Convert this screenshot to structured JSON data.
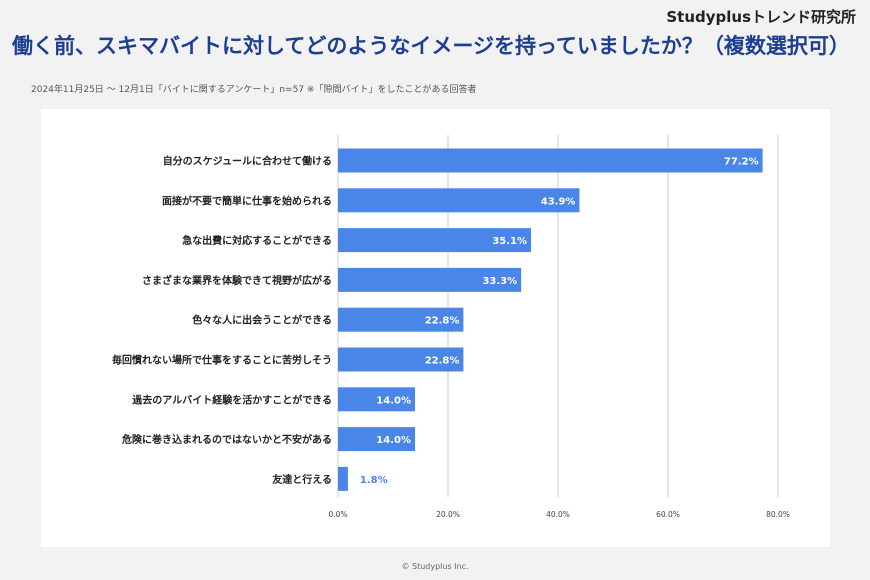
{
  "header": {
    "brand": "Studyplusトレンド研究所",
    "title": "働く前、スキマバイトに対してどのようなイメージを持っていましたか？（複数選択可）",
    "subtitle": "2024年11月25日 ～ 12月1日「バイトに関するアンケート」n=57 ※「隙間バイト」をしたことがある回答者"
  },
  "footer": {
    "copyright": "© Studyplus Inc."
  },
  "colors": {
    "bar": "#4a86e8",
    "title": "#1c3f91",
    "grid": "#cccccc"
  },
  "chart_data": {
    "type": "bar",
    "orientation": "horizontal",
    "title": "",
    "xlabel": "",
    "ylabel": "",
    "xlim": [
      0,
      80
    ],
    "x_ticks": [
      "0.0%",
      "20.0%",
      "40.0%",
      "60.0%",
      "80.0%"
    ],
    "grid": true,
    "categories": [
      "自分のスケジュールに合わせて働ける",
      "面接が不要で簡単に仕事を始められる",
      "急な出費に対応することができる",
      "さまざまな業界を体験できて視野が広がる",
      "色々な人に出会うことができる",
      "毎回慣れない場所で仕事をすることに苦労しそう",
      "過去のアルバイト経験を活かすことができる",
      "危険に巻き込まれるのではないかと不安がある",
      "友達と行える"
    ],
    "values": [
      77.2,
      43.9,
      35.1,
      33.3,
      22.8,
      22.8,
      14.0,
      14.0,
      1.8
    ],
    "data_labels": [
      "77.2%",
      "43.9%",
      "35.1%",
      "33.3%",
      "22.8%",
      "22.8%",
      "14.0%",
      "14.0%",
      "1.8%"
    ]
  }
}
